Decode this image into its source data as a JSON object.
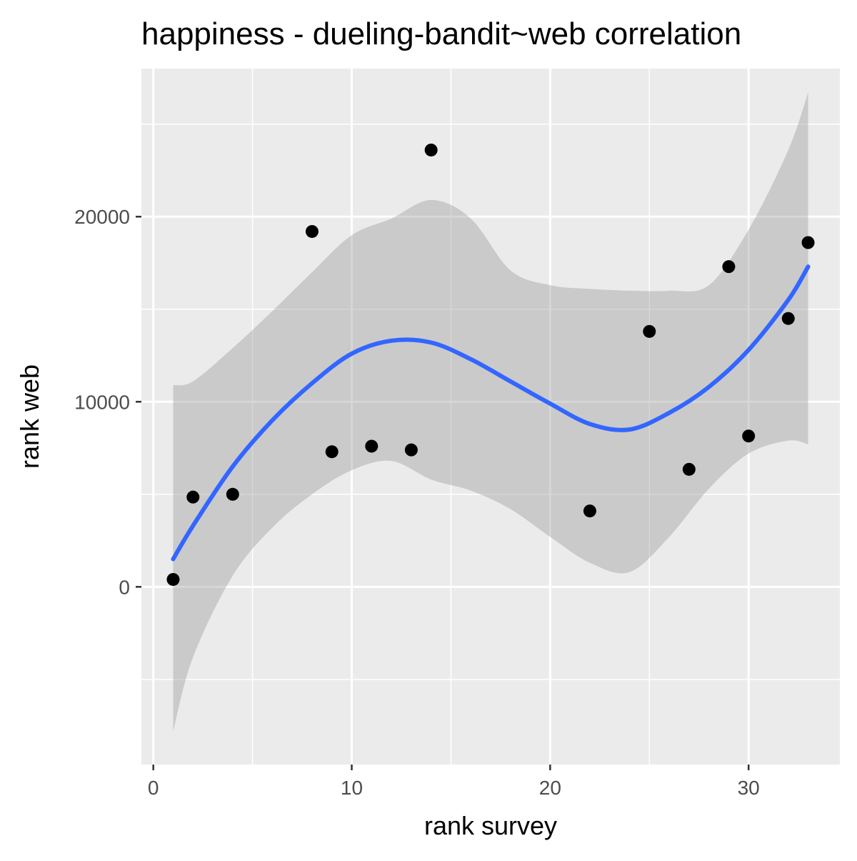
{
  "chart_data": {
    "type": "scatter",
    "title": "happiness - dueling-bandit~web correlation",
    "xlabel": "rank survey",
    "ylabel": "rank web",
    "xlim": [
      -0.6,
      34.6
    ],
    "ylim": [
      -9600,
      28000
    ],
    "x_ticks": [
      0,
      10,
      20,
      30
    ],
    "x_tick_labels": [
      "0",
      "10",
      "20",
      "30"
    ],
    "x_minor_ticks": [
      5,
      15,
      25
    ],
    "y_ticks": [
      0,
      10000,
      20000
    ],
    "y_tick_labels": [
      "0",
      "10000",
      "20000"
    ],
    "y_minor_ticks": [
      -5000,
      5000,
      15000,
      25000
    ],
    "grid": true,
    "background": "#ebebeb",
    "point_color": "#000000",
    "smooth_color": "#3366ff",
    "ribbon_color": "#999999",
    "points": [
      {
        "x": 1,
        "y": 400
      },
      {
        "x": 2,
        "y": 4850
      },
      {
        "x": 4,
        "y": 5000
      },
      {
        "x": 8,
        "y": 19200
      },
      {
        "x": 9,
        "y": 7300
      },
      {
        "x": 11,
        "y": 7600
      },
      {
        "x": 13,
        "y": 7400
      },
      {
        "x": 14,
        "y": 23600
      },
      {
        "x": 22,
        "y": 4100
      },
      {
        "x": 25,
        "y": 13800
      },
      {
        "x": 27,
        "y": 6350
      },
      {
        "x": 29,
        "y": 17300
      },
      {
        "x": 30,
        "y": 8150
      },
      {
        "x": 32,
        "y": 14500
      },
      {
        "x": 33,
        "y": 18600
      }
    ],
    "smooth": {
      "x": [
        1,
        2,
        4,
        6,
        8,
        10,
        12,
        14,
        16,
        18,
        20,
        22,
        24,
        26,
        28,
        30,
        32,
        33
      ],
      "y": [
        1500,
        3300,
        6500,
        9000,
        11000,
        12600,
        13300,
        13200,
        12300,
        11100,
        9900,
        8800,
        8500,
        9400,
        10800,
        12800,
        15500,
        17300
      ],
      "lower": [
        -7800,
        -3800,
        600,
        3200,
        5000,
        6300,
        6800,
        5800,
        5200,
        4200,
        2700,
        1300,
        800,
        2700,
        5300,
        7200,
        7900,
        7700
      ],
      "upper": [
        10900,
        11100,
        12900,
        14900,
        17000,
        19000,
        19900,
        20900,
        19900,
        17100,
        16300,
        16100,
        16000,
        16000,
        16300,
        19300,
        23600,
        26700
      ]
    }
  }
}
